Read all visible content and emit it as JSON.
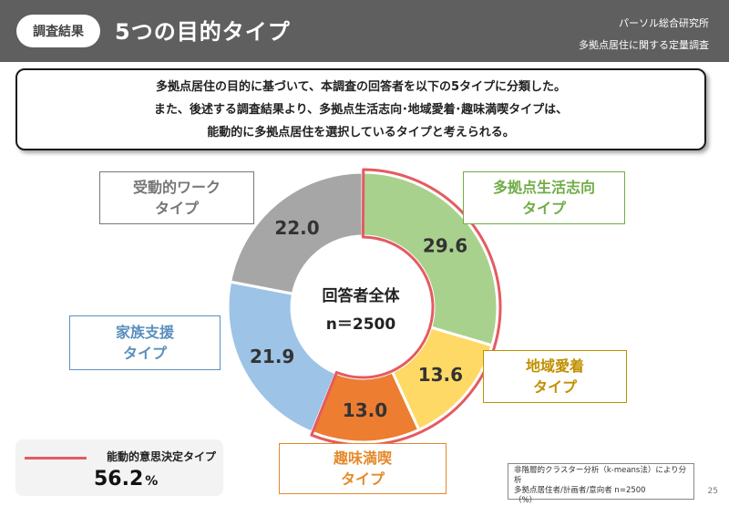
{
  "header": {
    "section_label": "調査結果",
    "title": "5つの目的タイプ",
    "organization": "パーソル総合研究所",
    "subtitle": "多拠点居住に関する定量調査"
  },
  "summary": {
    "lines": [
      "多拠点居住の目的に基づいて、本調査の回答者を以下の5タイプに分類した。",
      "また、後述する調査結果より、多拠点生活志向･地域愛着･趣味満喫タイプは、",
      "能動的に多拠点居住を選択しているタイプと考えられる。"
    ]
  },
  "chart_data": {
    "type": "pie",
    "style": "donut",
    "center_label": [
      "回答者全体",
      "n＝2500"
    ],
    "slices": [
      {
        "label_lines": [
          "多拠点生活志向",
          "タイプ"
        ],
        "value": 29.6,
        "value_label": "29.6",
        "color": "#a9d18e",
        "label_color": "#70ad47",
        "active": true
      },
      {
        "label_lines": [
          "地域愛着",
          "タイプ"
        ],
        "value": 13.6,
        "value_label": "13.6",
        "color": "#ffd966",
        "label_color": "#c09000",
        "active": true
      },
      {
        "label_lines": [
          "趣味満喫",
          "タイプ"
        ],
        "value": 13.0,
        "value_label": "13.0",
        "color": "#ed7d31",
        "label_color": "#e48a2c",
        "active": true
      },
      {
        "label_lines": [
          "家族支援",
          "タイプ"
        ],
        "value": 21.9,
        "value_label": "21.9",
        "color": "#9dc3e6",
        "label_color": "#5b8fbf",
        "active": false
      },
      {
        "label_lines": [
          "受動的ワーク",
          "タイプ"
        ],
        "value": 22.0,
        "value_label": "22.0",
        "color": "#a6a6a6",
        "label_color": "#767676",
        "active": false
      }
    ],
    "highlight_color": "#e45b61"
  },
  "legend": {
    "label": "能動的意思決定タイプ",
    "value": "56.2",
    "unit": "%"
  },
  "note": {
    "lines": [
      "非階層的クラスター分析（k-means法）により分析",
      "多拠点居住者/計画者/意向者 n=2500",
      "（%）"
    ]
  },
  "page_number": "25"
}
